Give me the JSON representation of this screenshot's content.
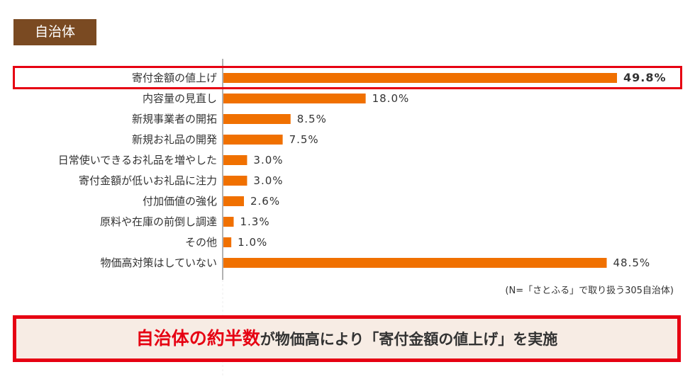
{
  "header": {
    "tag": "自治体"
  },
  "chart_data": {
    "type": "bar",
    "orientation": "horizontal",
    "categories": [
      "寄付金額の値上げ",
      "内容量の見直し",
      "新規事業者の開拓",
      "新規お礼品の開発",
      "日常使いできるお礼品を増やした",
      "寄付金額が低いお礼品に注力",
      "付加価値の強化",
      "原料や在庫の前倒し調達",
      "その他",
      "物価高対策はしていない"
    ],
    "values": [
      49.8,
      18.0,
      8.5,
      7.5,
      3.0,
      3.0,
      2.6,
      1.3,
      1.0,
      48.5
    ],
    "labels": [
      "49.8%",
      "18.0%",
      "8.5%",
      "7.5%",
      "3.0%",
      "3.0%",
      "2.6%",
      "1.3%",
      "1.0%",
      "48.5%"
    ],
    "highlight_index": 0,
    "bar_color": "#f07000",
    "xlim": [
      0,
      50
    ],
    "grid": false
  },
  "note": "(N=「さとふる」で取り扱う305自治体)",
  "banner": {
    "emphasis": "自治体の約半数",
    "rest": "が物価高により「寄付金額の値上げ」を実施"
  },
  "colors": {
    "highlight": "#e60012",
    "tag_bg": "#7a4a22",
    "banner_bg": "#f7ece4"
  }
}
